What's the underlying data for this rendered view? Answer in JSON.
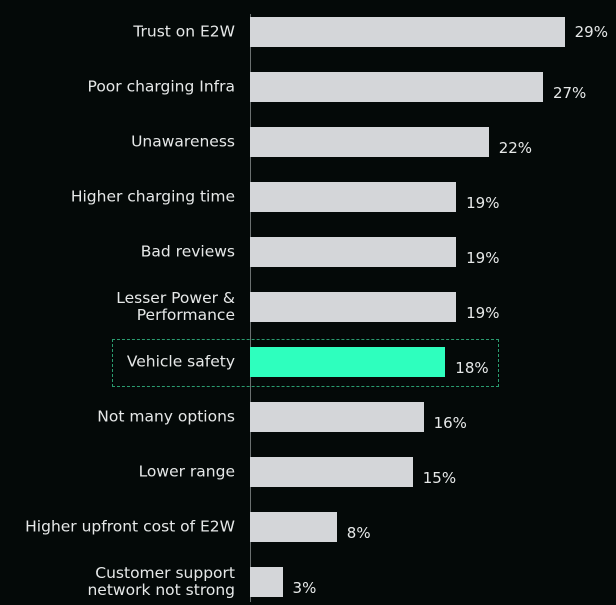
{
  "chart_data": {
    "type": "hbar",
    "categories": [
      "Trust on E2W",
      "Poor charging Infra",
      "Unawareness",
      "Higher charging time",
      "Bad reviews",
      "Lesser Power &\nPerformance",
      "Vehicle safety",
      "Not many options",
      "Lower range",
      "Higher upfront cost of E2W",
      "Customer support\nnetwork not strong"
    ],
    "values": [
      29,
      27,
      22,
      19,
      19,
      19,
      18,
      16,
      15,
      8,
      3
    ],
    "value_labels": [
      "29%",
      "27%",
      "22%",
      "19%",
      "19%",
      "19%",
      "18%",
      "16%",
      "15%",
      "8%",
      "3%"
    ],
    "colors": [
      "#d4d6d9",
      "#d4d6d9",
      "#d4d6d9",
      "#d4d6d9",
      "#d4d6d9",
      "#d4d6d9",
      "#2effbe",
      "#d4d6d9",
      "#d4d6d9",
      "#d4d6d9",
      "#d4d6d9"
    ]
  }
}
